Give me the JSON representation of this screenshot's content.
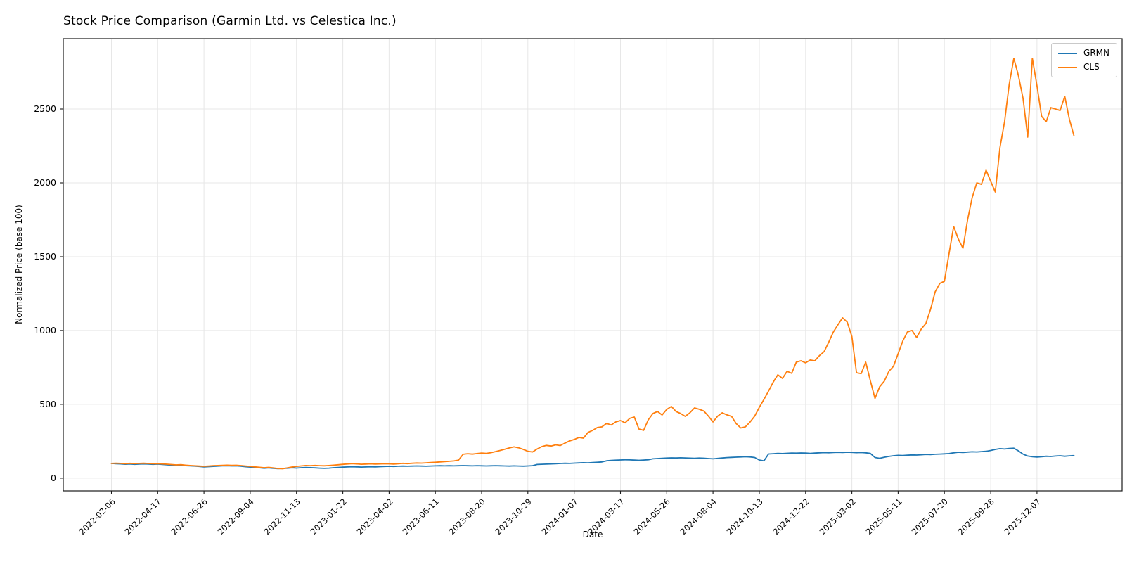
{
  "colors": {
    "background": "#ffffff",
    "grid": "#e7e7e7",
    "spine": "#1a1a1a",
    "grmn_line": "#1f77b4",
    "cls_line": "#ff7f0e"
  },
  "chart_data": {
    "type": "line",
    "title": "Stock Price Comparison (Garmin Ltd. vs Celestica Inc.)",
    "xlabel": "Date",
    "ylabel": "Normalized Price (base 100)",
    "grid": true,
    "legend_position": "upper right",
    "x_start_date": "2022-02-06",
    "x_frequency": "weekly",
    "n_points": 209,
    "x_tick_indices": [
      0,
      10,
      20,
      30,
      40,
      50,
      60,
      70,
      80,
      90,
      100,
      110,
      120,
      130,
      140,
      150,
      160,
      170,
      180,
      190,
      200
    ],
    "x_tick_labels": [
      "2022-02-06",
      "2022-04-17",
      "2022-06-26",
      "2022-09-04",
      "2022-11-13",
      "2023-01-22",
      "2023-04-02",
      "2023-06-11",
      "2023-08-20",
      "2023-10-29",
      "2024-01-07",
      "2024-03-17",
      "2024-05-26",
      "2024-08-04",
      "2024-10-13",
      "2024-12-22",
      "2025-03-02",
      "2025-05-11",
      "2025-07-20",
      "2025-09-28",
      "2025-12-07"
    ],
    "y_ticks": [
      0,
      500,
      1000,
      1500,
      2000,
      2500
    ],
    "ylim": [
      -86,
      2976
    ],
    "x_index_lim": [
      -10.4,
      218.4
    ],
    "series": [
      {
        "name": "GRMN",
        "color": "#1f77b4",
        "values": [
          100,
          98.5,
          96.8,
          94.5,
          96.2,
          93.8,
          95.5,
          97,
          95.8,
          94,
          95.2,
          93.5,
          91,
          88.5,
          86,
          87.5,
          85,
          83.5,
          82,
          79.5,
          77,
          78.5,
          80,
          82,
          83.5,
          84.5,
          83,
          84,
          81.5,
          78,
          75.5,
          73,
          70.5,
          68,
          70,
          67.5,
          65,
          66.5,
          68,
          70.5,
          69,
          71,
          72.5,
          71.5,
          70,
          68.5,
          67,
          68.5,
          71,
          73,
          75,
          76.5,
          78,
          77,
          75.5,
          76.5,
          78,
          77,
          78.5,
          79.5,
          80.5,
          79.5,
          81,
          82,
          81,
          82,
          83,
          82,
          81,
          82.5,
          83.5,
          84.5,
          83.5,
          84.5,
          83.5,
          84.5,
          85.5,
          84.5,
          83.5,
          85,
          84,
          83,
          84,
          85,
          84,
          83,
          82,
          83.5,
          82.5,
          81.5,
          83,
          85,
          93,
          94.5,
          95.5,
          97,
          98,
          99.5,
          101,
          100,
          102,
          103.5,
          105,
          104,
          106,
          108,
          110,
          118,
          120,
          122,
          123.5,
          125,
          124,
          122.5,
          121,
          123,
          125,
          131,
          133,
          135,
          136.5,
          138,
          137,
          138.5,
          137.5,
          136,
          135,
          136.5,
          135.5,
          133,
          131,
          134,
          137,
          139.5,
          141,
          142.5,
          144,
          145.5,
          144,
          140,
          123,
          118,
          164,
          166,
          168,
          167,
          169,
          170.5,
          169.5,
          171,
          170,
          168.5,
          170,
          172,
          173.5,
          172.5,
          174,
          175.5,
          174.5,
          176,
          175,
          173,
          174.5,
          172,
          168,
          140,
          135,
          142,
          148,
          152,
          155,
          153.5,
          156,
          158,
          157,
          159,
          161,
          160,
          162,
          163.5,
          165,
          167,
          172,
          176,
          174,
          177,
          179,
          178,
          180,
          182,
          188,
          195,
          200,
          198,
          201,
          203,
          185,
          163,
          150,
          146,
          143,
          146,
          149,
          147.5,
          150,
          152,
          149,
          151.5,
          153
        ]
      },
      {
        "name": "CLS",
        "color": "#ff7f0e",
        "values": [
          100,
          101.5,
          100,
          98.5,
          100.5,
          99,
          100,
          101,
          99.5,
          98,
          99,
          97,
          95,
          92.5,
          90,
          91.5,
          88.5,
          86,
          84,
          82,
          80.5,
          82.5,
          84.5,
          86,
          87.5,
          88.5,
          87,
          88,
          85.5,
          82.5,
          80,
          77,
          74,
          71,
          73.5,
          69.5,
          66,
          64,
          70,
          76,
          80,
          83,
          86,
          84.5,
          86.5,
          85,
          84,
          86,
          88.5,
          91,
          94,
          96.5,
          99,
          97,
          94.5,
          96,
          97.5,
          95.5,
          97,
          98.5,
          97.5,
          96,
          98,
          100.5,
          99,
          101,
          103,
          102,
          104,
          106.5,
          108,
          110,
          112,
          114.5,
          117,
          122,
          162,
          166,
          163,
          167,
          170,
          168,
          173,
          180,
          188,
          196,
          205,
          212,
          206,
          195,
          182,
          178,
          198,
          214,
          222,
          218,
          226,
          221,
          238,
          252,
          262,
          276,
          271,
          310,
          324,
          343,
          348,
          371,
          360,
          381,
          390,
          375,
          405,
          414,
          333,
          324,
          395,
          438,
          452,
          428,
          466,
          486,
          452,
          438,
          419,
          443,
          476,
          467,
          455,
          420,
          381,
          420,
          443,
          429,
          419,
          370,
          340,
          348,
          380,
          420,
          480,
          533,
          590,
          650,
          700,
          676,
          724,
          710,
          786,
          795,
          781,
          800,
          795,
          830,
          857,
          921,
          990,
          1040,
          1086,
          1057,
          960,
          714,
          708,
          786,
          660,
          540,
          619,
          657,
          724,
          758,
          843,
          929,
          990,
          1000,
          952,
          1010,
          1048,
          1143,
          1262,
          1319,
          1333,
          1520,
          1705,
          1620,
          1557,
          1750,
          1900,
          2000,
          1990,
          2086,
          2010,
          1938,
          2238,
          2414,
          2667,
          2843,
          2724,
          2571,
          2310,
          2843,
          2657,
          2450,
          2414,
          2509,
          2500,
          2490,
          2586,
          2430,
          2319
        ]
      }
    ]
  }
}
